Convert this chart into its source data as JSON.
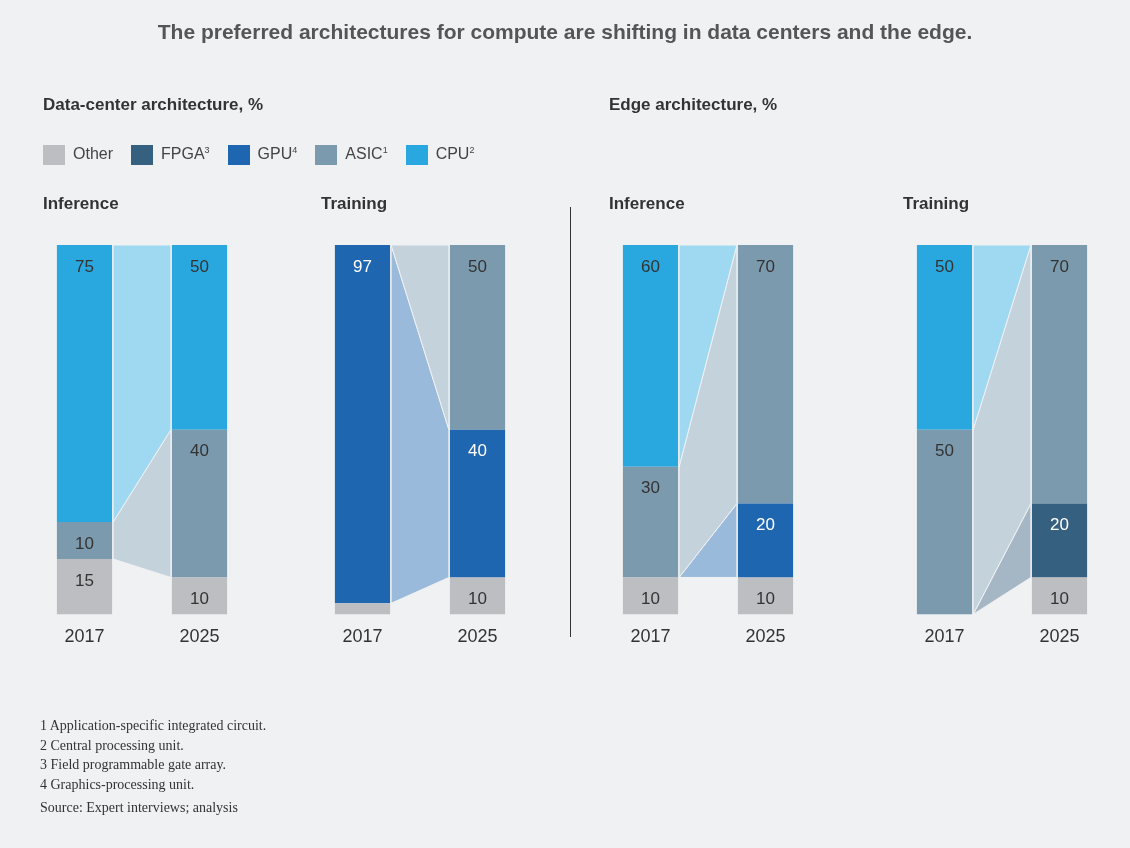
{
  "chart_data": [
    {
      "type": "other",
      "title": "The preferred architectures for compute are shifting in data centers and the edge.",
      "annotations": [
        "1 Application-specific integrated circuit.",
        "2 Central processing unit.",
        "3 Field programmable gate array.",
        "4 Graphics-processing unit.",
        "Source: Expert interviews; analysis"
      ]
    },
    {
      "type": "bar",
      "title": "Data-center architecture, %",
      "subtitle": "Inference",
      "categories": [
        "2017",
        "2025"
      ],
      "stacked": true,
      "ylim": [
        0,
        100
      ],
      "tick_labels": "x",
      "legend": "top",
      "series": [
        {
          "name": "Other",
          "color": "#bdbec2",
          "values": [
            15,
            10
          ],
          "value_labels": [
            "15",
            "10"
          ]
        },
        {
          "name": "FPGA$^{3}$",
          "color": "#36607f",
          "values": [
            null,
            null
          ],
          "value_labels": [
            null,
            null
          ]
        },
        {
          "name": "GPU$^{4}$",
          "color": "#1f66b0",
          "values": [
            null,
            null
          ],
          "value_labels": [
            null,
            null
          ]
        },
        {
          "name": "ASIC$^{1}$",
          "color": "#7b9aae",
          "values": [
            10,
            40
          ],
          "value_labels": [
            "10",
            "40"
          ]
        },
        {
          "name": "CPU$^{2}$",
          "color": "#29a8e0",
          "values": [
            75,
            50
          ],
          "value_labels": [
            "75",
            "50"
          ]
        }
      ]
    },
    {
      "type": "bar",
      "subtitle": "Training",
      "categories": [
        "2017",
        "2025"
      ],
      "stacked": true,
      "ylim": [
        0,
        100
      ],
      "tick_labels": "x",
      "series": [
        {
          "color": "#bdbec2",
          "values": [
            3,
            10
          ],
          "value_labels": [
            null,
            "10"
          ]
        },
        {
          "color": "#36607f",
          "values": [
            null,
            null
          ],
          "value_labels": [
            null,
            null
          ]
        },
        {
          "color": "#1f66b0",
          "values": [
            97,
            40
          ],
          "value_labels": [
            "97",
            "40"
          ]
        },
        {
          "color": "#7b9aae",
          "values": [
            null,
            50
          ],
          "value_labels": [
            null,
            "50"
          ]
        },
        {
          "color": "#29a8e0",
          "values": [
            null,
            null
          ],
          "value_labels": [
            null,
            null
          ]
        }
      ]
    },
    {
      "type": "bar",
      "title": "Edge architecture, %",
      "subtitle": "Inference",
      "categories": [
        "2017",
        "2025"
      ],
      "stacked": true,
      "ylim": [
        0,
        100
      ],
      "tick_labels": "x",
      "series": [
        {
          "color": "#bdbec2",
          "values": [
            10,
            10
          ],
          "value_labels": [
            "10",
            "10"
          ]
        },
        {
          "color": "#36607f",
          "values": [
            null,
            null
          ],
          "value_labels": [
            null,
            null
          ]
        },
        {
          "color": "#1f66b0",
          "values": [
            null,
            20
          ],
          "value_labels": [
            null,
            "20"
          ]
        },
        {
          "color": "#7b9aae",
          "values": [
            30,
            70
          ],
          "value_labels": [
            "30",
            "70"
          ]
        },
        {
          "color": "#29a8e0",
          "values": [
            60,
            null
          ],
          "value_labels": [
            "60",
            null
          ]
        }
      ]
    },
    {
      "type": "bar",
      "subtitle": "Training",
      "categories": [
        "2017",
        "2025"
      ],
      "stacked": true,
      "ylim": [
        0,
        100
      ],
      "tick_labels": "x",
      "series": [
        {
          "color": "#bdbec2",
          "values": [
            null,
            10
          ],
          "value_labels": [
            null,
            "10"
          ]
        },
        {
          "color": "#36607f",
          "values": [
            null,
            20
          ],
          "value_labels": [
            null,
            "20"
          ]
        },
        {
          "color": "#1f66b0",
          "values": [
            null,
            null
          ],
          "value_labels": [
            null,
            null
          ]
        },
        {
          "color": "#7b9aae",
          "values": [
            50,
            70
          ],
          "value_labels": [
            "50",
            "70"
          ]
        },
        {
          "color": "#29a8e0",
          "values": [
            50,
            null
          ],
          "value_labels": [
            "50",
            null
          ]
        }
      ]
    }
  ]
}
